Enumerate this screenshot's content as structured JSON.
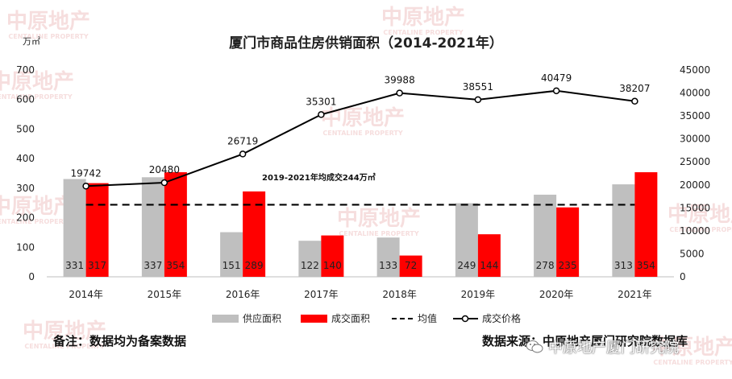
{
  "title": "厦门市商品住房供销面积（2014-2021年）",
  "left_unit": "万㎡",
  "annotation": "2019-2021年均成交244万㎡",
  "footer_note": "备注：数据均为备案数据",
  "footer_source": "数据来源：中原地产厦门研究院数据库",
  "brand": "中原地产厦门研究院",
  "watermark": "中原地产",
  "watermark_sub": "CENTALINE PROPERTY",
  "colors": {
    "supply": "#bfbfbf",
    "deal": "#ff0000",
    "average": "#000000",
    "price": "#000000",
    "watermark": "#f6dede"
  },
  "chart_data": {
    "type": "bar",
    "title": "厦门市商品住房供销面积（2014-2021年）",
    "categories": [
      "2014年",
      "2015年",
      "2016年",
      "2017年",
      "2018年",
      "2019年",
      "2020年",
      "2021年"
    ],
    "series": [
      {
        "name": "供应面积",
        "type": "bar",
        "axis": "left",
        "values": [
          331,
          337,
          151,
          122,
          133,
          249,
          278,
          313
        ]
      },
      {
        "name": "成交面积",
        "type": "bar",
        "axis": "left",
        "values": [
          317,
          354,
          289,
          140,
          72,
          144,
          235,
          354
        ]
      },
      {
        "name": "均值",
        "type": "dashed-line",
        "axis": "left",
        "value": 244
      },
      {
        "name": "成交价格",
        "type": "line",
        "axis": "right",
        "values": [
          19742,
          20480,
          26719,
          35301,
          39988,
          38551,
          40479,
          38207
        ]
      }
    ],
    "y_left": {
      "unit": "万㎡",
      "ylim": [
        0,
        700
      ],
      "ticks": [
        0,
        100,
        200,
        300,
        400,
        500,
        600,
        700
      ]
    },
    "y_right": {
      "ylim": [
        0,
        45000
      ],
      "ticks": [
        0,
        5000,
        10000,
        15000,
        20000,
        25000,
        30000,
        35000,
        40000,
        45000
      ]
    },
    "legend": [
      "供应面积",
      "成交面积",
      "均值",
      "成交价格"
    ],
    "legend_position": "bottom",
    "grid": false
  }
}
